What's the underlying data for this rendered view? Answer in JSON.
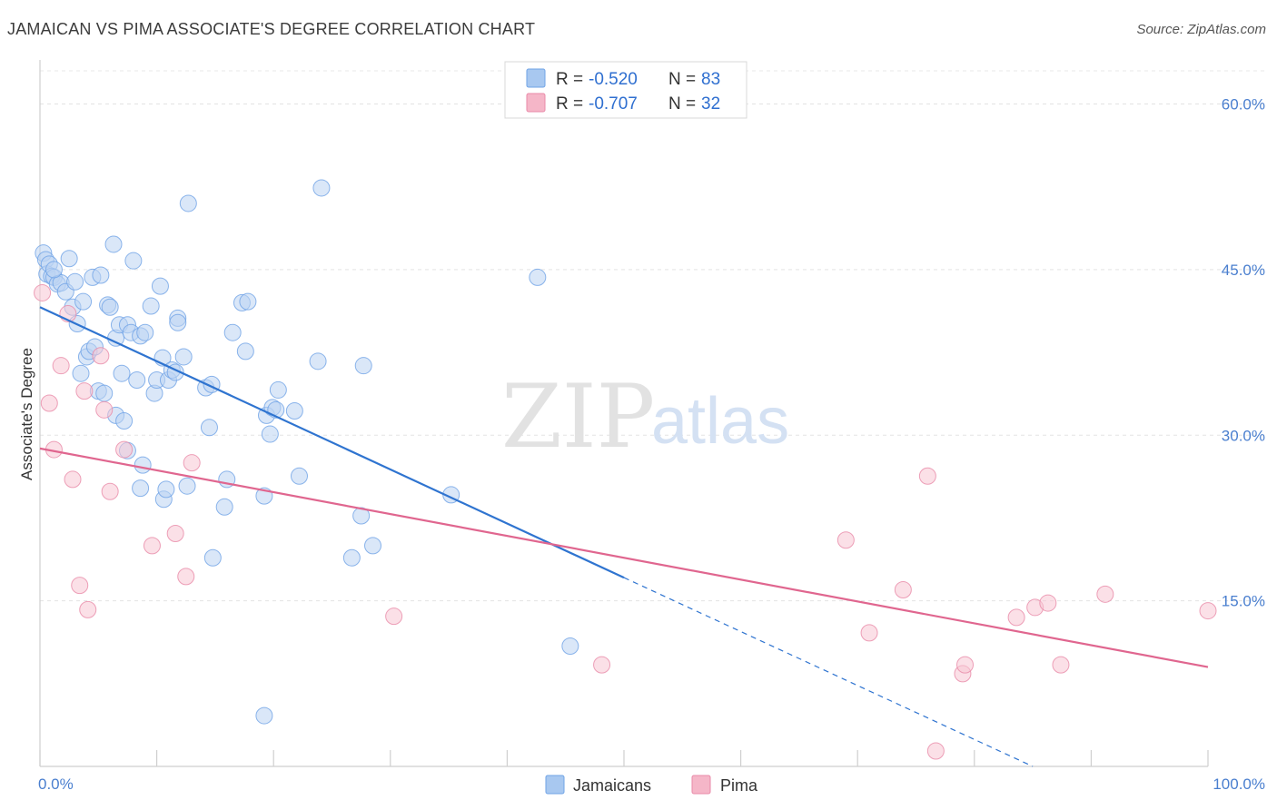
{
  "header": {
    "title": "JAMAICAN VS PIMA ASSOCIATE'S DEGREE CORRELATION CHART",
    "source": "Source: ZipAtlas.com"
  },
  "watermark": {
    "zip": "ZIP",
    "atlas": "atlas"
  },
  "legend_top": {
    "rows": [
      {
        "r_label": "R = ",
        "r_value": "-0.520",
        "n_label": "N = ",
        "n_value": "83",
        "color": "#a8c8f0"
      },
      {
        "r_label": "R = ",
        "r_value": "-0.707",
        "n_label": "N = ",
        "n_value": "32",
        "color": "#f5b6c8"
      }
    ]
  },
  "legend_bottom": {
    "items": [
      "Jamaicans",
      "Pima"
    ]
  },
  "chart_data": {
    "type": "scatter",
    "title": "JAMAICAN VS PIMA ASSOCIATE'S DEGREE CORRELATION CHART",
    "xlabel": "",
    "ylabel": "Associate's Degree",
    "xlim": [
      0,
      100
    ],
    "ylim": [
      0,
      63.5
    ],
    "x_tick_labels": [
      "0.0%",
      "100.0%"
    ],
    "y_ticks": [
      15,
      30,
      45,
      60
    ],
    "y_tick_labels": [
      "15.0%",
      "30.0%",
      "45.0%",
      "60.0%"
    ],
    "grid": true,
    "legend_position": "top-center",
    "series": [
      {
        "name": "Jamaicans",
        "color": "#6fa3e6",
        "fill": "#bcd4f3",
        "r": -0.52,
        "n": 83,
        "trend": {
          "x0": 0,
          "y0": 41.6,
          "x1": 50,
          "y1": 17.1,
          "dash_to_x": 85,
          "dash_to_y": 0
        },
        "points": [
          [
            0.3,
            46.5
          ],
          [
            0.5,
            45.9
          ],
          [
            0.6,
            44.6
          ],
          [
            0.8,
            45.5
          ],
          [
            1.0,
            44.4
          ],
          [
            1.2,
            44.3
          ],
          [
            1.5,
            43.7
          ],
          [
            1.8,
            43.8
          ],
          [
            2.2,
            43.0
          ],
          [
            2.5,
            46.0
          ],
          [
            2.8,
            41.6
          ],
          [
            3.0,
            43.9
          ],
          [
            3.2,
            40.1
          ],
          [
            3.5,
            35.6
          ],
          [
            3.7,
            42.1
          ],
          [
            4.0,
            37.1
          ],
          [
            4.2,
            37.6
          ],
          [
            4.5,
            44.3
          ],
          [
            4.7,
            38.0
          ],
          [
            5.0,
            34.0
          ],
          [
            5.2,
            44.5
          ],
          [
            5.5,
            33.8
          ],
          [
            5.8,
            41.8
          ],
          [
            6.0,
            41.6
          ],
          [
            6.3,
            47.3
          ],
          [
            6.5,
            38.8
          ],
          [
            6.8,
            40.0
          ],
          [
            6.5,
            31.8
          ],
          [
            7.0,
            35.6
          ],
          [
            7.2,
            31.3
          ],
          [
            7.5,
            40.0
          ],
          [
            7.5,
            28.6
          ],
          [
            7.8,
            39.3
          ],
          [
            8.0,
            45.8
          ],
          [
            8.3,
            35.0
          ],
          [
            8.6,
            39.0
          ],
          [
            8.6,
            25.2
          ],
          [
            8.8,
            27.3
          ],
          [
            9.0,
            39.3
          ],
          [
            9.5,
            41.7
          ],
          [
            9.8,
            33.8
          ],
          [
            10.0,
            35.0
          ],
          [
            10.3,
            43.5
          ],
          [
            10.5,
            37.0
          ],
          [
            10.6,
            24.2
          ],
          [
            10.8,
            25.1
          ],
          [
            11.0,
            35.0
          ],
          [
            11.3,
            35.9
          ],
          [
            11.6,
            35.7
          ],
          [
            11.8,
            40.6
          ],
          [
            11.8,
            40.2
          ],
          [
            12.3,
            37.1
          ],
          [
            12.7,
            51.0
          ],
          [
            12.6,
            25.4
          ],
          [
            14.2,
            34.3
          ],
          [
            14.7,
            34.6
          ],
          [
            14.5,
            30.7
          ],
          [
            14.8,
            18.9
          ],
          [
            15.8,
            23.5
          ],
          [
            16.0,
            26.0
          ],
          [
            16.5,
            39.3
          ],
          [
            17.3,
            42.0
          ],
          [
            17.8,
            42.1
          ],
          [
            17.6,
            37.6
          ],
          [
            19.2,
            24.5
          ],
          [
            19.4,
            31.8
          ],
          [
            19.7,
            30.1
          ],
          [
            19.9,
            32.5
          ],
          [
            20.2,
            32.3
          ],
          [
            20.4,
            34.1
          ],
          [
            19.2,
            4.6
          ],
          [
            21.8,
            32.2
          ],
          [
            22.2,
            26.3
          ],
          [
            24.1,
            52.4
          ],
          [
            23.8,
            36.7
          ],
          [
            27.5,
            22.7
          ],
          [
            27.7,
            36.3
          ],
          [
            26.7,
            18.9
          ],
          [
            28.5,
            20.0
          ],
          [
            35.2,
            24.6
          ],
          [
            42.6,
            44.3
          ],
          [
            45.4,
            10.9
          ],
          [
            1.2,
            45.0
          ]
        ]
      },
      {
        "name": "Pima",
        "color": "#e98aa8",
        "fill": "#f7c7d4",
        "r": -0.707,
        "n": 32,
        "trend": {
          "x0": 0,
          "y0": 28.8,
          "x1": 100,
          "y1": 9.0
        },
        "points": [
          [
            0.2,
            42.9
          ],
          [
            0.8,
            32.9
          ],
          [
            1.2,
            28.7
          ],
          [
            1.8,
            36.3
          ],
          [
            2.4,
            41.0
          ],
          [
            2.8,
            26.0
          ],
          [
            3.4,
            16.4
          ],
          [
            3.8,
            34.0
          ],
          [
            4.1,
            14.2
          ],
          [
            5.2,
            37.2
          ],
          [
            5.5,
            32.3
          ],
          [
            6.0,
            24.9
          ],
          [
            7.2,
            28.7
          ],
          [
            9.6,
            20.0
          ],
          [
            11.6,
            21.1
          ],
          [
            12.5,
            17.2
          ],
          [
            13.0,
            27.5
          ],
          [
            30.3,
            13.6
          ],
          [
            48.1,
            9.2
          ],
          [
            69.0,
            20.5
          ],
          [
            71.0,
            12.1
          ],
          [
            73.9,
            16.0
          ],
          [
            76.0,
            26.3
          ],
          [
            76.7,
            1.4
          ],
          [
            79.0,
            8.4
          ],
          [
            79.2,
            9.2
          ],
          [
            83.6,
            13.5
          ],
          [
            85.2,
            14.4
          ],
          [
            86.3,
            14.8
          ],
          [
            87.4,
            9.2
          ],
          [
            91.2,
            15.6
          ],
          [
            100.0,
            14.1
          ]
        ]
      }
    ]
  }
}
